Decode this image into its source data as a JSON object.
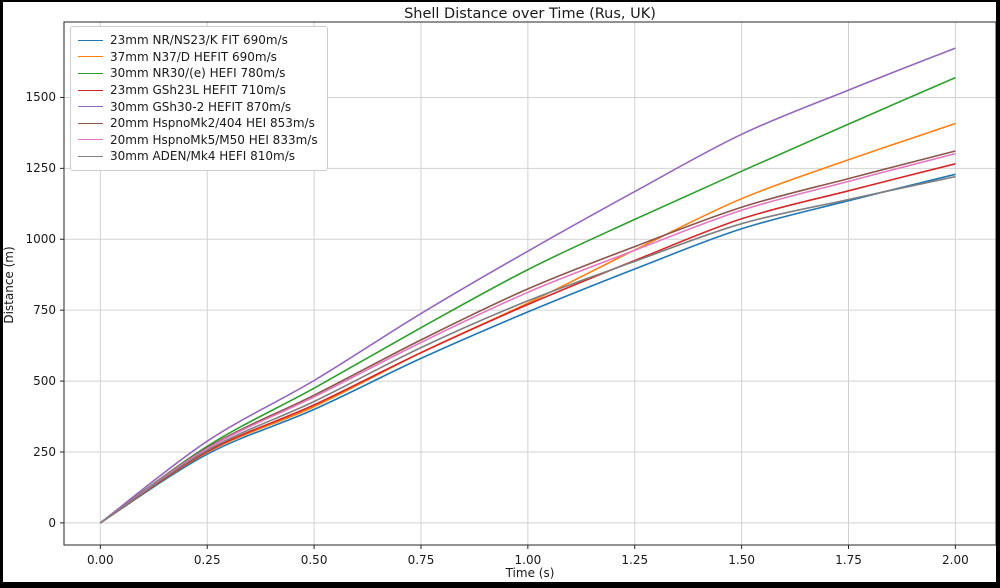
{
  "chart_data": {
    "type": "line",
    "title": "Shell Distance over Time (Rus, UK)",
    "xlabel": "Time (s)",
    "ylabel": "Distance (m)",
    "grid": true,
    "legend_position": "upper left",
    "xlim": [
      -0.085,
      2.095
    ],
    "ylim": [
      -78,
      1766
    ],
    "x_ticks": [
      0,
      0.25,
      0.5,
      0.75,
      1.0,
      1.25,
      1.5,
      1.75,
      2.0
    ],
    "x_tick_labels": [
      "0.00",
      "0.25",
      "0.50",
      "0.75",
      "1.00",
      "1.25",
      "1.50",
      "1.75",
      "2.00"
    ],
    "y_ticks": [
      0,
      250,
      500,
      750,
      1000,
      1250,
      1500
    ],
    "y_tick_labels": [
      "0",
      "250",
      "500",
      "750",
      "1000",
      "1250",
      "1500"
    ],
    "x": [
      0,
      0.25,
      0.5,
      0.75,
      1.0,
      1.25,
      1.5,
      1.75,
      2.0
    ],
    "series": [
      {
        "name": "23mm NR/NS23/K FIT 690m/s",
        "color": "#1f77b4",
        "values": [
          0,
          242,
          400,
          580,
          744,
          895,
          1037,
          1136,
          1229
        ]
      },
      {
        "name": "37mm N37/D HEFIT 690m/s",
        "color": "#ff7f0e",
        "values": [
          0,
          249,
          410,
          600,
          775,
          962,
          1143,
          1280,
          1408
        ]
      },
      {
        "name": "30mm NR30/(e) HEFI 780m/s",
        "color": "#2ca02c",
        "values": [
          0,
          270,
          475,
          688,
          893,
          1070,
          1240,
          1406,
          1570
        ]
      },
      {
        "name": "23mm GSh23L HEFIT 710m/s",
        "color": "#d62728",
        "values": [
          0,
          251,
          416,
          600,
          770,
          925,
          1072,
          1171,
          1266
        ]
      },
      {
        "name": "30mm GSh30-2 HEFIT 870m/s",
        "color": "#9467bd",
        "values": [
          0,
          288,
          502,
          738,
          958,
          1168,
          1370,
          1526,
          1674
        ]
      },
      {
        "name": "20mm HspnoMk2/404 HEI 853m/s",
        "color": "#8c564b",
        "values": [
          0,
          265,
          450,
          645,
          825,
          974,
          1113,
          1214,
          1311
        ]
      },
      {
        "name": "20mm HspnoMk5/M50 HEI 833m/s",
        "color": "#e377c2",
        "values": [
          0,
          262,
          444,
          636,
          813,
          961,
          1102,
          1204,
          1302
        ]
      },
      {
        "name": "30mm ADEN/Mk4 HEFI 810m/s",
        "color": "#7f7f7f",
        "values": [
          0,
          256,
          428,
          618,
          783,
          922,
          1055,
          1140,
          1221
        ]
      }
    ],
    "style": {
      "grid_color": "#d2d2d2",
      "spine_color": "#262626",
      "tick_color": "#262626",
      "line_width": 1.6
    }
  }
}
